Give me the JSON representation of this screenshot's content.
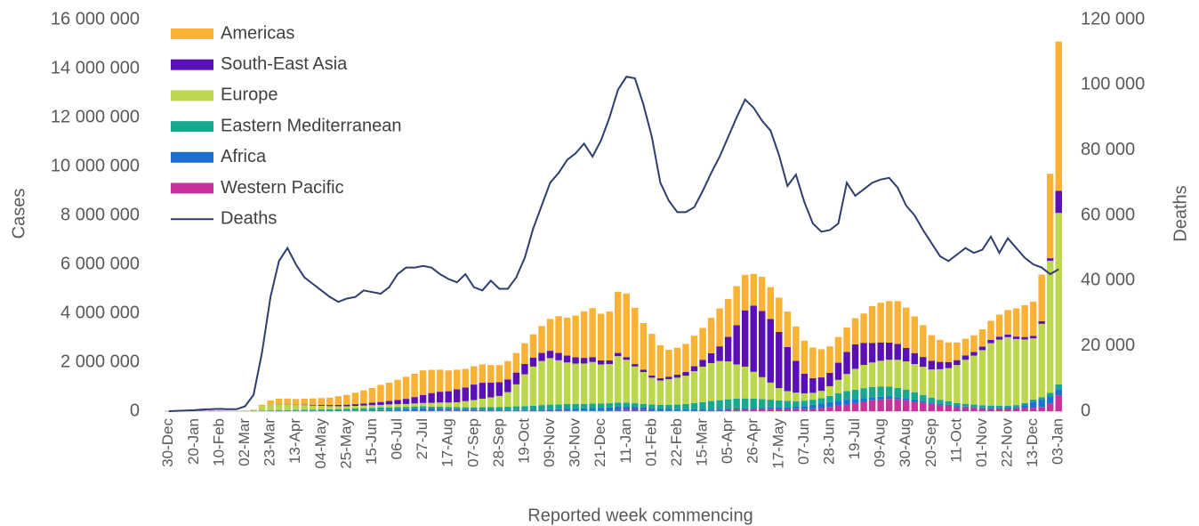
{
  "chart_data": {
    "type": "bar",
    "stacked": true,
    "y_label": "Cases",
    "y2_label": "Deaths",
    "x_label": "Reported week commencing",
    "categories": [
      "30-Dec",
      null,
      null,
      "20-Jan",
      null,
      null,
      "10-Feb",
      null,
      null,
      "02-Mar",
      null,
      null,
      "23-Mar",
      null,
      null,
      "13-Apr",
      null,
      null,
      "04-May",
      null,
      null,
      "25-May",
      null,
      null,
      "15-Jun",
      null,
      null,
      "06-Jul",
      null,
      null,
      "27-Jul",
      null,
      null,
      "17-Aug",
      null,
      null,
      "07-Sep",
      null,
      null,
      "28-Sep",
      null,
      null,
      "19-Oct",
      null,
      null,
      "09-Nov",
      null,
      null,
      "30-Nov",
      null,
      null,
      "21-Dec",
      null,
      null,
      "11-Jan",
      null,
      null,
      "01-Feb",
      null,
      null,
      "22-Feb",
      null,
      null,
      "15-Mar",
      null,
      null,
      "05-Apr",
      null,
      null,
      "26-Apr",
      null,
      null,
      "17-May",
      null,
      null,
      "07-Jun",
      null,
      null,
      "28-Jun",
      null,
      null,
      "19-Jul",
      null,
      null,
      "09-Aug",
      null,
      null,
      "30-Aug",
      null,
      null,
      "20-Sep",
      null,
      null,
      "11-Oct",
      null,
      null,
      "01-Nov",
      null,
      null,
      "22-Nov",
      null,
      null,
      "13-Dec",
      null,
      null,
      "03-Jan"
    ],
    "series": [
      {
        "name": "Americas",
        "color": "#f9b233",
        "values": [
          0,
          0,
          0,
          0,
          0,
          0,
          0,
          0,
          0,
          1000,
          5000,
          60000,
          150000,
          220000,
          240000,
          230000,
          240000,
          260000,
          280000,
          300000,
          350000,
          400000,
          470000,
          540000,
          600000,
          700000,
          750000,
          820000,
          900000,
          950000,
          1000000,
          950000,
          900000,
          850000,
          800000,
          760000,
          750000,
          750000,
          720000,
          700000,
          750000,
          800000,
          850000,
          950000,
          1100000,
          1300000,
          1500000,
          1550000,
          1700000,
          1900000,
          2000000,
          1900000,
          2000000,
          2500000,
          2600000,
          2300000,
          1900000,
          1700000,
          1350000,
          1100000,
          1100000,
          1150000,
          1250000,
          1300000,
          1450000,
          1550000,
          1550000,
          1600000,
          1450000,
          1300000,
          1400000,
          1300000,
          1400000,
          1450000,
          1400000,
          1350000,
          1250000,
          1150000,
          1080000,
          1050000,
          1000000,
          1070000,
          1200000,
          1500000,
          1620000,
          1700000,
          1750000,
          1650000,
          1500000,
          1300000,
          1050000,
          900000,
          800000,
          720000,
          680000,
          680000,
          710000,
          780000,
          900000,
          1000000,
          1150000,
          1300000,
          1400000,
          1900000,
          3450000,
          6100000
        ]
      },
      {
        "name": "South-East Asia",
        "color": "#5a10b5",
        "values": [
          0,
          0,
          0,
          0,
          0,
          0,
          0,
          0,
          0,
          0,
          1000,
          2000,
          4000,
          8000,
          10000,
          15000,
          20000,
          30000,
          35000,
          45000,
          55000,
          65000,
          70000,
          80000,
          100000,
          120000,
          140000,
          170000,
          210000,
          260000,
          330000,
          400000,
          440000,
          460000,
          530000,
          560000,
          630000,
          650000,
          600000,
          560000,
          520000,
          480000,
          420000,
          370000,
          330000,
          300000,
          300000,
          280000,
          260000,
          230000,
          200000,
          170000,
          150000,
          130000,
          110000,
          100000,
          100000,
          90000,
          90000,
          100000,
          120000,
          150000,
          200000,
          280000,
          400000,
          600000,
          1000000,
          1600000,
          2300000,
          2700000,
          2700000,
          2600000,
          2300000,
          1800000,
          1300000,
          800000,
          600000,
          550000,
          550000,
          700000,
          900000,
          1000000,
          900000,
          800000,
          750000,
          700000,
          650000,
          550000,
          450000,
          400000,
          350000,
          300000,
          250000,
          200000,
          180000,
          150000,
          140000,
          130000,
          120000,
          110000,
          100000,
          100000,
          100000,
          110000,
          100000,
          900000
        ]
      },
      {
        "name": "Europe",
        "color": "#bcd64e",
        "values": [
          0,
          0,
          0,
          0,
          0,
          0,
          0,
          0,
          1000,
          10000,
          40000,
          180000,
          250000,
          240000,
          220000,
          200000,
          190000,
          170000,
          150000,
          130000,
          120000,
          110000,
          110000,
          110000,
          110000,
          110000,
          120000,
          120000,
          120000,
          125000,
          130000,
          150000,
          170000,
          180000,
          200000,
          250000,
          300000,
          350000,
          400000,
          450000,
          600000,
          900000,
          1300000,
          1600000,
          1800000,
          1900000,
          1800000,
          1700000,
          1650000,
          1650000,
          1700000,
          1600000,
          1600000,
          1900000,
          1750000,
          1500000,
          1300000,
          1100000,
          1000000,
          1050000,
          1100000,
          1150000,
          1300000,
          1450000,
          1550000,
          1600000,
          1550000,
          1400000,
          1300000,
          1100000,
          900000,
          700000,
          500000,
          400000,
          350000,
          300000,
          280000,
          300000,
          400000,
          550000,
          700000,
          850000,
          950000,
          1000000,
          1050000,
          1100000,
          1150000,
          1150000,
          1150000,
          1150000,
          1150000,
          1250000,
          1350000,
          1550000,
          1800000,
          2000000,
          2250000,
          2550000,
          2700000,
          2800000,
          2700000,
          2600000,
          2500000,
          3000000,
          5400000,
          7000000
        ]
      },
      {
        "name": "Eastern Mediterranean",
        "color": "#17a88e",
        "values": [
          0,
          0,
          0,
          0,
          0,
          0,
          0,
          0,
          1000,
          10000,
          10000,
          15000,
          25000,
          30000,
          35000,
          40000,
          45000,
          50000,
          55000,
          60000,
          65000,
          70000,
          80000,
          90000,
          100000,
          100000,
          100000,
          100000,
          90000,
          90000,
          90000,
          80000,
          80000,
          80000,
          80000,
          85000,
          90000,
          100000,
          110000,
          120000,
          130000,
          150000,
          160000,
          170000,
          190000,
          200000,
          200000,
          200000,
          190000,
          180000,
          180000,
          170000,
          170000,
          170000,
          170000,
          160000,
          150000,
          150000,
          150000,
          170000,
          190000,
          220000,
          250000,
          280000,
          320000,
          350000,
          380000,
          400000,
          400000,
          380000,
          350000,
          320000,
          280000,
          250000,
          230000,
          220000,
          210000,
          220000,
          250000,
          300000,
          350000,
          380000,
          400000,
          420000,
          420000,
          400000,
          380000,
          350000,
          300000,
          250000,
          200000,
          170000,
          150000,
          120000,
          110000,
          100000,
          95000,
          90000,
          85000,
          80000,
          80000,
          80000,
          85000,
          100000,
          150000,
          200000
        ]
      },
      {
        "name": "Africa",
        "color": "#1f6fd1",
        "values": [
          0,
          0,
          0,
          0,
          0,
          0,
          0,
          0,
          0,
          0,
          0,
          1000,
          2000,
          5000,
          5000,
          6000,
          8000,
          8000,
          10000,
          12000,
          15000,
          18000,
          22000,
          25000,
          30000,
          40000,
          50000,
          60000,
          75000,
          90000,
          100000,
          90000,
          80000,
          70000,
          60000,
          55000,
          50000,
          45000,
          40000,
          40000,
          38000,
          35000,
          35000,
          40000,
          45000,
          50000,
          60000,
          70000,
          80000,
          90000,
          100000,
          110000,
          120000,
          130000,
          120000,
          110000,
          100000,
          80000,
          70000,
          60000,
          50000,
          50000,
          50000,
          50000,
          50000,
          50000,
          50000,
          50000,
          50000,
          50000,
          50000,
          50000,
          50000,
          60000,
          80000,
          110000,
          150000,
          180000,
          200000,
          210000,
          200000,
          170000,
          140000,
          120000,
          110000,
          100000,
          90000,
          85000,
          75000,
          65000,
          55000,
          45000,
          40000,
          35000,
          30000,
          30000,
          30000,
          30000,
          30000,
          35000,
          50000,
          120000,
          250000,
          300000,
          300000,
          250000
        ]
      },
      {
        "name": "Western Pacific",
        "color": "#c8339b",
        "values": [
          0,
          0,
          1000,
          10000,
          20000,
          20000,
          15000,
          5000,
          3000,
          4000,
          5000,
          5000,
          6000,
          6000,
          5000,
          5000,
          5000,
          4000,
          4000,
          4000,
          4000,
          4000,
          5000,
          5000,
          5000,
          6000,
          7000,
          8000,
          10000,
          12000,
          15000,
          20000,
          25000,
          25000,
          25000,
          20000,
          18000,
          16000,
          14000,
          13000,
          12000,
          12000,
          12000,
          13000,
          15000,
          18000,
          20000,
          22000,
          25000,
          28000,
          30000,
          30000,
          35000,
          50000,
          60000,
          55000,
          50000,
          40000,
          35000,
          30000,
          30000,
          30000,
          35000,
          40000,
          45000,
          50000,
          55000,
          60000,
          70000,
          80000,
          90000,
          100000,
          110000,
          110000,
          100000,
          100000,
          110000,
          130000,
          170000,
          220000,
          270000,
          330000,
          400000,
          450000,
          480000,
          500000,
          480000,
          450000,
          400000,
          350000,
          300000,
          250000,
          220000,
          180000,
          160000,
          140000,
          120000,
          110000,
          110000,
          110000,
          120000,
          130000,
          140000,
          170000,
          300000,
          650000
        ]
      },
      {
        "name": "Deaths",
        "type": "line",
        "axis": "y2",
        "color": "#2e3e6e",
        "values": [
          0,
          100,
          200,
          300,
          500,
          600,
          700,
          600,
          600,
          1500,
          5000,
          18000,
          35000,
          46000,
          50000,
          45000,
          41000,
          39000,
          37000,
          35000,
          33500,
          34500,
          35000,
          37000,
          36500,
          36000,
          38000,
          42000,
          44000,
          44000,
          44500,
          44000,
          42000,
          40500,
          39500,
          42000,
          38000,
          37000,
          40000,
          37500,
          37500,
          41000,
          47000,
          56000,
          63000,
          70000,
          73000,
          77000,
          79000,
          82000,
          78000,
          83000,
          90000,
          98500,
          102500,
          102000,
          94000,
          84000,
          70000,
          64500,
          61000,
          61000,
          62500,
          67500,
          73000,
          78000,
          84000,
          90000,
          95500,
          93000,
          89000,
          86000,
          78500,
          69000,
          72500,
          64000,
          57500,
          55000,
          55500,
          57500,
          70000,
          66000,
          68000,
          70000,
          71000,
          71500,
          68500,
          63000,
          60000,
          55500,
          51500,
          47500,
          46000,
          48000,
          50000,
          48500,
          49500,
          53500,
          48500,
          53000,
          50000,
          47000,
          45000,
          44000,
          42000,
          43500
        ]
      }
    ],
    "ylim": [
      0,
      16000000
    ],
    "yticks": [
      0,
      {
        "value": 2000000,
        "label": "2 000 000"
      },
      {
        "value": 4000000,
        "label": "4 000 000"
      },
      {
        "value": 6000000,
        "label": "6 000 000"
      },
      {
        "value": 8000000,
        "label": "8 000 000"
      },
      {
        "value": 10000000,
        "label": "10 000 000"
      },
      {
        "value": 12000000,
        "label": "12 000 000"
      },
      {
        "value": 14000000,
        "label": "14 000 000"
      },
      {
        "value": 16000000,
        "label": "16 000 000"
      }
    ],
    "y2lim": [
      0,
      120000
    ],
    "y2ticks": [
      0,
      {
        "value": 20000,
        "label": "20 000"
      },
      {
        "value": 40000,
        "label": "40 000"
      },
      {
        "value": 60000,
        "label": "60 000"
      },
      {
        "value": 80000,
        "label": "80 000"
      },
      {
        "value": 100000,
        "label": "100 000"
      },
      {
        "value": 120000,
        "label": "120 000"
      }
    ],
    "grid": false,
    "legend": "top-left"
  }
}
